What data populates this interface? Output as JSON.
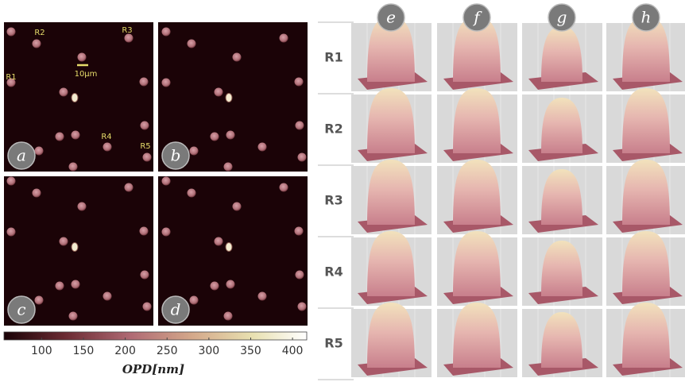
{
  "panels": {
    "labels": [
      "a",
      "b",
      "c",
      "d"
    ]
  },
  "cell_labels": [
    "R1",
    "R2",
    "R3",
    "R4",
    "R5"
  ],
  "scale_bar": "10µm",
  "colorbar": {
    "label": "OPD[nm]",
    "range": [
      55,
      417
    ],
    "ticks": [
      100,
      150,
      200,
      250,
      300,
      350,
      400
    ]
  },
  "grid": {
    "columns": [
      "e",
      "f",
      "g",
      "h"
    ],
    "rows": [
      "R1",
      "R2",
      "R3",
      "R4",
      "R5"
    ]
  }
}
